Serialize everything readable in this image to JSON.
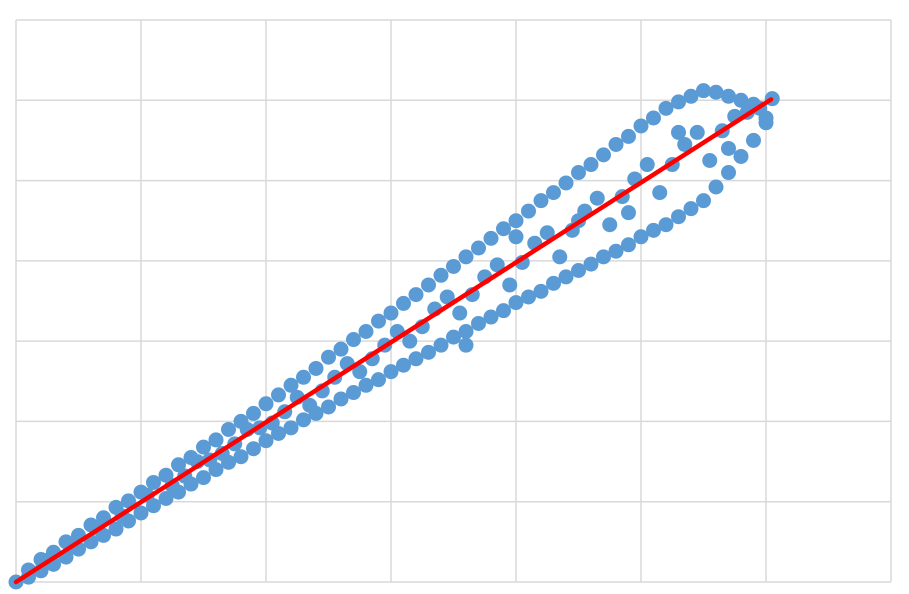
{
  "chart_data": {
    "type": "scatter",
    "title": "",
    "xlabel": "",
    "ylabel": "",
    "xlim": [
      0,
      7
    ],
    "ylim": [
      0,
      7
    ],
    "grid": true,
    "tick_labels_shown": false,
    "legend": "none",
    "colors": {
      "points": "#5B9BD5",
      "trendline": "#FF0000",
      "grid": "#D9D9D9"
    },
    "trendline": {
      "x": [
        0,
        6.04
      ],
      "y": [
        0,
        6.01
      ]
    },
    "points": [
      [
        0,
        0
      ],
      [
        0.1,
        0.15
      ],
      [
        0.1,
        0.06
      ],
      [
        0.2,
        0.28
      ],
      [
        0.2,
        0.14
      ],
      [
        0.3,
        0.37
      ],
      [
        0.3,
        0.22
      ],
      [
        0.4,
        0.5
      ],
      [
        0.4,
        0.31
      ],
      [
        0.5,
        0.58
      ],
      [
        0.5,
        0.41
      ],
      [
        0.6,
        0.71
      ],
      [
        0.6,
        0.5
      ],
      [
        0.7,
        0.8
      ],
      [
        0.7,
        0.58
      ],
      [
        0.8,
        0.93
      ],
      [
        0.8,
        0.66
      ],
      [
        0.9,
        1.01
      ],
      [
        0.9,
        0.76
      ],
      [
        1.0,
        1.12
      ],
      [
        1.0,
        0.86
      ],
      [
        1.1,
        1.24
      ],
      [
        1.1,
        0.95
      ],
      [
        1.2,
        1.33
      ],
      [
        1.2,
        1.04
      ],
      [
        1.3,
        1.46
      ],
      [
        1.3,
        1.12
      ],
      [
        1.4,
        1.55
      ],
      [
        1.4,
        1.22
      ],
      [
        1.5,
        1.68
      ],
      [
        1.5,
        1.3
      ],
      [
        1.6,
        1.77
      ],
      [
        1.6,
        1.4
      ],
      [
        1.7,
        1.9
      ],
      [
        1.7,
        1.49
      ],
      [
        1.8,
        2.0
      ],
      [
        1.8,
        1.56
      ],
      [
        1.9,
        2.1
      ],
      [
        1.9,
        1.66
      ],
      [
        2.0,
        2.22
      ],
      [
        2.0,
        1.76
      ],
      [
        2.1,
        2.33
      ],
      [
        2.1,
        1.85
      ],
      [
        2.2,
        2.45
      ],
      [
        2.2,
        1.92
      ],
      [
        2.3,
        2.55
      ],
      [
        2.3,
        2.02
      ],
      [
        2.4,
        2.66
      ],
      [
        2.4,
        2.1
      ],
      [
        2.5,
        2.8
      ],
      [
        2.5,
        2.18
      ],
      [
        2.6,
        2.9
      ],
      [
        2.6,
        2.28
      ],
      [
        2.7,
        3.02
      ],
      [
        2.7,
        2.36
      ],
      [
        2.8,
        3.12
      ],
      [
        2.8,
        2.45
      ],
      [
        2.9,
        3.25
      ],
      [
        2.9,
        2.52
      ],
      [
        3.0,
        3.35
      ],
      [
        3.0,
        2.62
      ],
      [
        3.1,
        3.47
      ],
      [
        3.1,
        2.7
      ],
      [
        3.2,
        3.58
      ],
      [
        3.2,
        2.78
      ],
      [
        3.3,
        3.7
      ],
      [
        3.3,
        2.86
      ],
      [
        3.4,
        3.82
      ],
      [
        3.4,
        2.95
      ],
      [
        3.5,
        3.93
      ],
      [
        3.5,
        3.05
      ],
      [
        3.6,
        4.05
      ],
      [
        3.6,
        3.12
      ],
      [
        3.7,
        4.16
      ],
      [
        3.7,
        3.22
      ],
      [
        3.8,
        4.28
      ],
      [
        3.8,
        3.3
      ],
      [
        3.9,
        4.4
      ],
      [
        3.9,
        3.38
      ],
      [
        4.0,
        4.5
      ],
      [
        4.0,
        3.48
      ],
      [
        4.1,
        4.62
      ],
      [
        4.1,
        3.55
      ],
      [
        4.2,
        4.75
      ],
      [
        4.2,
        3.62
      ],
      [
        4.3,
        4.85
      ],
      [
        4.3,
        3.72
      ],
      [
        4.4,
        4.97
      ],
      [
        4.4,
        3.8
      ],
      [
        4.5,
        5.1
      ],
      [
        4.5,
        3.88
      ],
      [
        4.6,
        5.2
      ],
      [
        4.6,
        3.96
      ],
      [
        4.7,
        5.32
      ],
      [
        4.7,
        4.05
      ],
      [
        4.8,
        5.45
      ],
      [
        4.8,
        4.12
      ],
      [
        4.9,
        5.55
      ],
      [
        4.9,
        4.2
      ],
      [
        5.0,
        5.68
      ],
      [
        5.0,
        4.3
      ],
      [
        5.1,
        5.78
      ],
      [
        5.1,
        4.38
      ],
      [
        5.2,
        5.9
      ],
      [
        5.2,
        4.45
      ],
      [
        5.3,
        5.98
      ],
      [
        5.3,
        4.55
      ],
      [
        5.4,
        6.05
      ],
      [
        5.4,
        4.65
      ],
      [
        5.5,
        6.12
      ],
      [
        5.5,
        4.75
      ],
      [
        5.6,
        6.1
      ],
      [
        5.6,
        4.92
      ],
      [
        5.7,
        6.05
      ],
      [
        5.7,
        5.1
      ],
      [
        5.8,
        6.0
      ],
      [
        5.8,
        5.3
      ],
      [
        5.9,
        5.95
      ],
      [
        5.9,
        5.5
      ],
      [
        6.0,
        5.78
      ],
      [
        6.0,
        5.72
      ],
      [
        0.25,
        0.27
      ],
      [
        0.45,
        0.44
      ],
      [
        0.65,
        0.67
      ],
      [
        0.85,
        0.82
      ],
      [
        1.05,
        1.08
      ],
      [
        1.25,
        1.2
      ],
      [
        1.45,
        1.5
      ],
      [
        1.65,
        1.6
      ],
      [
        1.85,
        1.9
      ],
      [
        2.05,
        1.98
      ],
      [
        2.25,
        2.3
      ],
      [
        2.45,
        2.38
      ],
      [
        2.65,
        2.72
      ],
      [
        2.85,
        2.78
      ],
      [
        3.05,
        3.12
      ],
      [
        3.25,
        3.18
      ],
      [
        3.45,
        3.55
      ],
      [
        3.65,
        3.58
      ],
      [
        3.85,
        3.95
      ],
      [
        4.05,
        3.98
      ],
      [
        4.25,
        4.35
      ],
      [
        4.45,
        4.38
      ],
      [
        4.65,
        4.78
      ],
      [
        4.85,
        4.8
      ],
      [
        5.05,
        5.2
      ],
      [
        5.25,
        5.2
      ],
      [
        5.45,
        5.6
      ],
      [
        5.65,
        5.62
      ],
      [
        5.85,
        5.85
      ],
      [
        6.05,
        6.02
      ],
      [
        1.35,
        1.32
      ],
      [
        1.55,
        1.52
      ],
      [
        1.75,
        1.72
      ],
      [
        1.95,
        1.92
      ],
      [
        2.15,
        2.12
      ],
      [
        2.35,
        2.2
      ],
      [
        2.55,
        2.55
      ],
      [
        2.75,
        2.62
      ],
      [
        2.95,
        2.95
      ],
      [
        3.15,
        3.0
      ],
      [
        3.35,
        3.4
      ],
      [
        3.55,
        3.35
      ],
      [
        3.75,
        3.8
      ],
      [
        3.95,
        3.7
      ],
      [
        4.15,
        4.22
      ],
      [
        4.35,
        4.05
      ],
      [
        4.55,
        4.62
      ],
      [
        4.75,
        4.45
      ],
      [
        4.95,
        5.02
      ],
      [
        5.15,
        4.85
      ],
      [
        5.35,
        5.45
      ],
      [
        5.55,
        5.25
      ],
      [
        5.75,
        5.8
      ],
      [
        5.95,
        5.9
      ],
      [
        3.6,
        2.95
      ],
      [
        4.5,
        4.5
      ],
      [
        4.9,
        4.6
      ],
      [
        5.3,
        5.6
      ],
      [
        5.7,
        5.4
      ],
      [
        4.0,
        4.3
      ]
    ]
  }
}
